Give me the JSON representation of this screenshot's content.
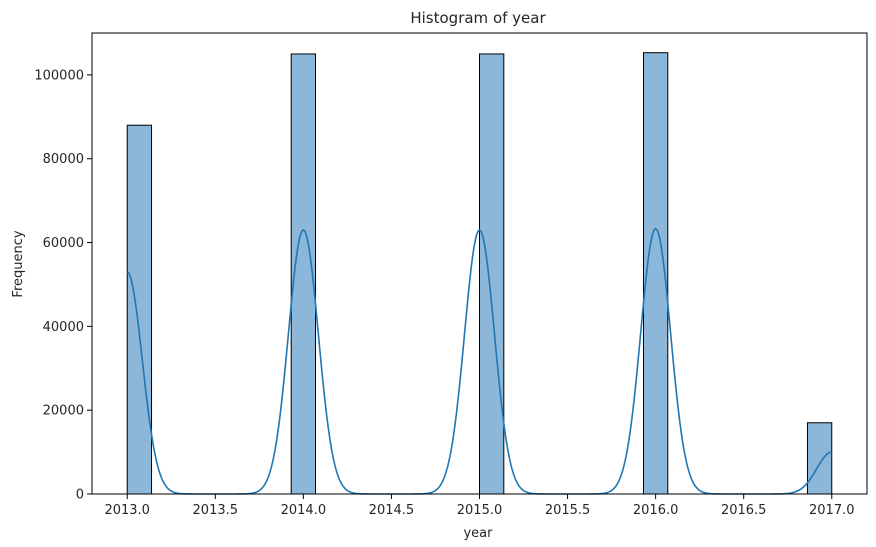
{
  "chart_data": {
    "type": "bar",
    "title": "Histogram of year",
    "xlabel": "year",
    "ylabel": "Frequency",
    "xlim": [
      2012.8,
      2017.2
    ],
    "ylim": [
      0,
      110000
    ],
    "xticks": [
      2013.0,
      2013.5,
      2014.0,
      2014.5,
      2015.0,
      2015.5,
      2016.0,
      2016.5,
      2017.0
    ],
    "xtick_labels": [
      "2013.0",
      "2013.5",
      "2014.0",
      "2014.5",
      "2015.0",
      "2015.5",
      "2016.0",
      "2016.5",
      "2017.0"
    ],
    "yticks": [
      0,
      20000,
      40000,
      60000,
      80000,
      100000
    ],
    "ytick_labels": [
      "0",
      "20000",
      "40000",
      "60000",
      "80000",
      "100000"
    ],
    "grid": false,
    "legend": "none",
    "bars": [
      {
        "x0": 2013.0,
        "x1": 2013.138,
        "count": 88000
      },
      {
        "x0": 2013.931,
        "x1": 2014.069,
        "count": 105000
      },
      {
        "x0": 2015.0,
        "x1": 2015.138,
        "count": 105000
      },
      {
        "x0": 2015.931,
        "x1": 2016.069,
        "count": 105300
      },
      {
        "x0": 2016.862,
        "x1": 2017.0,
        "count": 17000
      }
    ],
    "kde": {
      "peaks": [
        {
          "x": 2013.0,
          "y": 53000
        },
        {
          "x": 2014.0,
          "y": 63000
        },
        {
          "x": 2015.0,
          "y": 63000
        },
        {
          "x": 2016.0,
          "y": 63300
        },
        {
          "x": 2017.0,
          "y": 10000
        }
      ],
      "x_range": [
        2013.0,
        2017.0
      ]
    },
    "colors": {
      "bar_fill": "#8db7d9",
      "bar_edge": "#000000",
      "kde_line": "#1f77b4"
    }
  }
}
